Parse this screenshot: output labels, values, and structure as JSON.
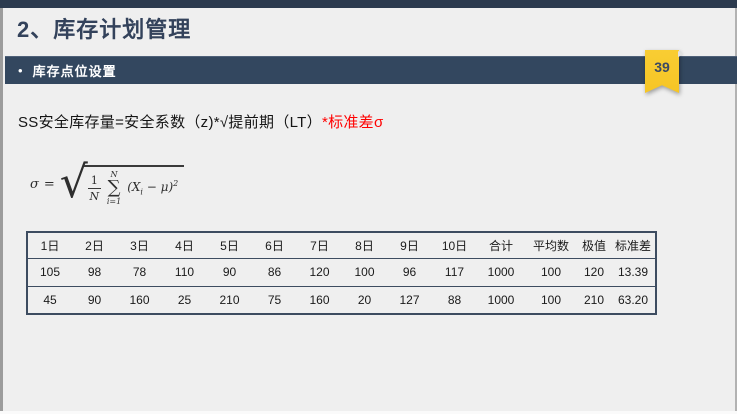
{
  "page": {
    "title": "2、库存计划管理",
    "section_bullet": "•",
    "section_title": "库存点位设置",
    "page_number": "39"
  },
  "formula_line": {
    "main": "SS安全库存量=安全系数（z)*√提前期（LT）",
    "highlight": "*标准差σ"
  },
  "math_formula": {
    "lhs": "σ",
    "equals": "=",
    "radical_sign": "√",
    "frac_numerator": "1",
    "frac_denominator": "N",
    "sum_upper_limit": "N",
    "sum_symbol": "∑",
    "sum_lower_limit": "i=1",
    "term_open": "(X",
    "term_subscript": "i",
    "term_close": " − μ)",
    "term_exponent": "2"
  },
  "table": {
    "headers": [
      "1日",
      "2日",
      "3日",
      "4日",
      "5日",
      "6日",
      "7日",
      "8日",
      "9日",
      "10日",
      "合计",
      "平均数",
      "极值",
      "标准差"
    ],
    "rows": [
      [
        "105",
        "98",
        "78",
        "110",
        "90",
        "86",
        "120",
        "100",
        "96",
        "117",
        "1000",
        "100",
        "120",
        "13.39"
      ],
      [
        "45",
        "90",
        "160",
        "25",
        "210",
        "75",
        "160",
        "20",
        "127",
        "88",
        "1000",
        "100",
        "210",
        "63.20"
      ]
    ]
  },
  "colors": {
    "accent_navy": "#33475F",
    "top_strip_navy": "#2B3A4E",
    "badge_yellow": "#F8C92C",
    "highlight_red": "#FF0000",
    "background_gray": "#EFEFEF"
  }
}
